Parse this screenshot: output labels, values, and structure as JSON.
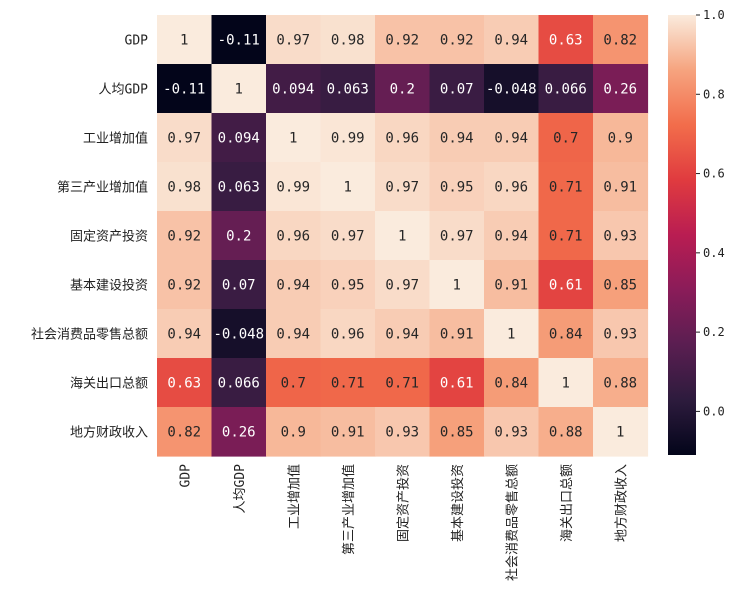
{
  "chart_data": {
    "type": "heatmap",
    "title": "",
    "xlabel": "",
    "ylabel": "",
    "rows": [
      "GDP",
      "人均GDP",
      "工业增加值",
      "第三产业增加值",
      "固定资产投资",
      "基本建设投资",
      "社会消费品零售总额",
      "海关出口总额",
      "地方财政收入"
    ],
    "columns": [
      "GDP",
      "人均GDP",
      "工业增加值",
      "第三产业增加值",
      "固定资产投资",
      "基本建设投资",
      "社会消费品零售总额",
      "海关出口总额",
      "地方财政收入"
    ],
    "values": [
      [
        1,
        -0.11,
        0.97,
        0.98,
        0.92,
        0.92,
        0.94,
        0.63,
        0.82
      ],
      [
        -0.11,
        1,
        0.094,
        0.063,
        0.2,
        0.07,
        -0.048,
        0.066,
        0.26
      ],
      [
        0.97,
        0.094,
        1,
        0.99,
        0.96,
        0.94,
        0.94,
        0.7,
        0.9
      ],
      [
        0.98,
        0.063,
        0.99,
        1,
        0.97,
        0.95,
        0.96,
        0.71,
        0.91
      ],
      [
        0.92,
        0.2,
        0.96,
        0.97,
        1,
        0.97,
        0.94,
        0.71,
        0.93
      ],
      [
        0.92,
        0.07,
        0.94,
        0.95,
        0.97,
        1,
        0.91,
        0.61,
        0.85
      ],
      [
        0.94,
        -0.048,
        0.94,
        0.96,
        0.94,
        0.91,
        1,
        0.84,
        0.93
      ],
      [
        0.63,
        0.066,
        0.7,
        0.71,
        0.71,
        0.61,
        0.84,
        1,
        0.88
      ],
      [
        0.82,
        0.26,
        0.9,
        0.91,
        0.93,
        0.85,
        0.93,
        0.88,
        1
      ]
    ],
    "labels": [
      [
        "1",
        "-0.11",
        "0.97",
        "0.98",
        "0.92",
        "0.92",
        "0.94",
        "0.63",
        "0.82"
      ],
      [
        "-0.11",
        "1",
        "0.094",
        "0.063",
        "0.2",
        "0.07",
        "-0.048",
        "0.066",
        "0.26"
      ],
      [
        "0.97",
        "0.094",
        "1",
        "0.99",
        "0.96",
        "0.94",
        "0.94",
        "0.7",
        "0.9"
      ],
      [
        "0.98",
        "0.063",
        "0.99",
        "1",
        "0.97",
        "0.95",
        "0.96",
        "0.71",
        "0.91"
      ],
      [
        "0.92",
        "0.2",
        "0.96",
        "0.97",
        "1",
        "0.97",
        "0.94",
        "0.71",
        "0.93"
      ],
      [
        "0.92",
        "0.07",
        "0.94",
        "0.95",
        "0.97",
        "1",
        "0.91",
        "0.61",
        "0.85"
      ],
      [
        "0.94",
        "-0.048",
        "0.94",
        "0.96",
        "0.94",
        "0.91",
        "1",
        "0.84",
        "0.93"
      ],
      [
        "0.63",
        "0.066",
        "0.7",
        "0.71",
        "0.71",
        "0.61",
        "0.84",
        "1",
        "0.88"
      ],
      [
        "0.82",
        "0.26",
        "0.9",
        "0.91",
        "0.93",
        "0.85",
        "0.93",
        "0.88",
        "1"
      ]
    ],
    "vmin": -0.11,
    "vmax": 1.0,
    "colormap": "rocket",
    "colorbar": {
      "ticks": [
        0.0,
        0.2,
        0.4,
        0.6,
        0.8,
        1.0
      ],
      "tick_labels": [
        "0.0",
        "0.2",
        "0.4",
        "0.6",
        "0.8",
        "1.0"
      ],
      "placement": "right"
    },
    "grid": false,
    "legend": "none"
  }
}
